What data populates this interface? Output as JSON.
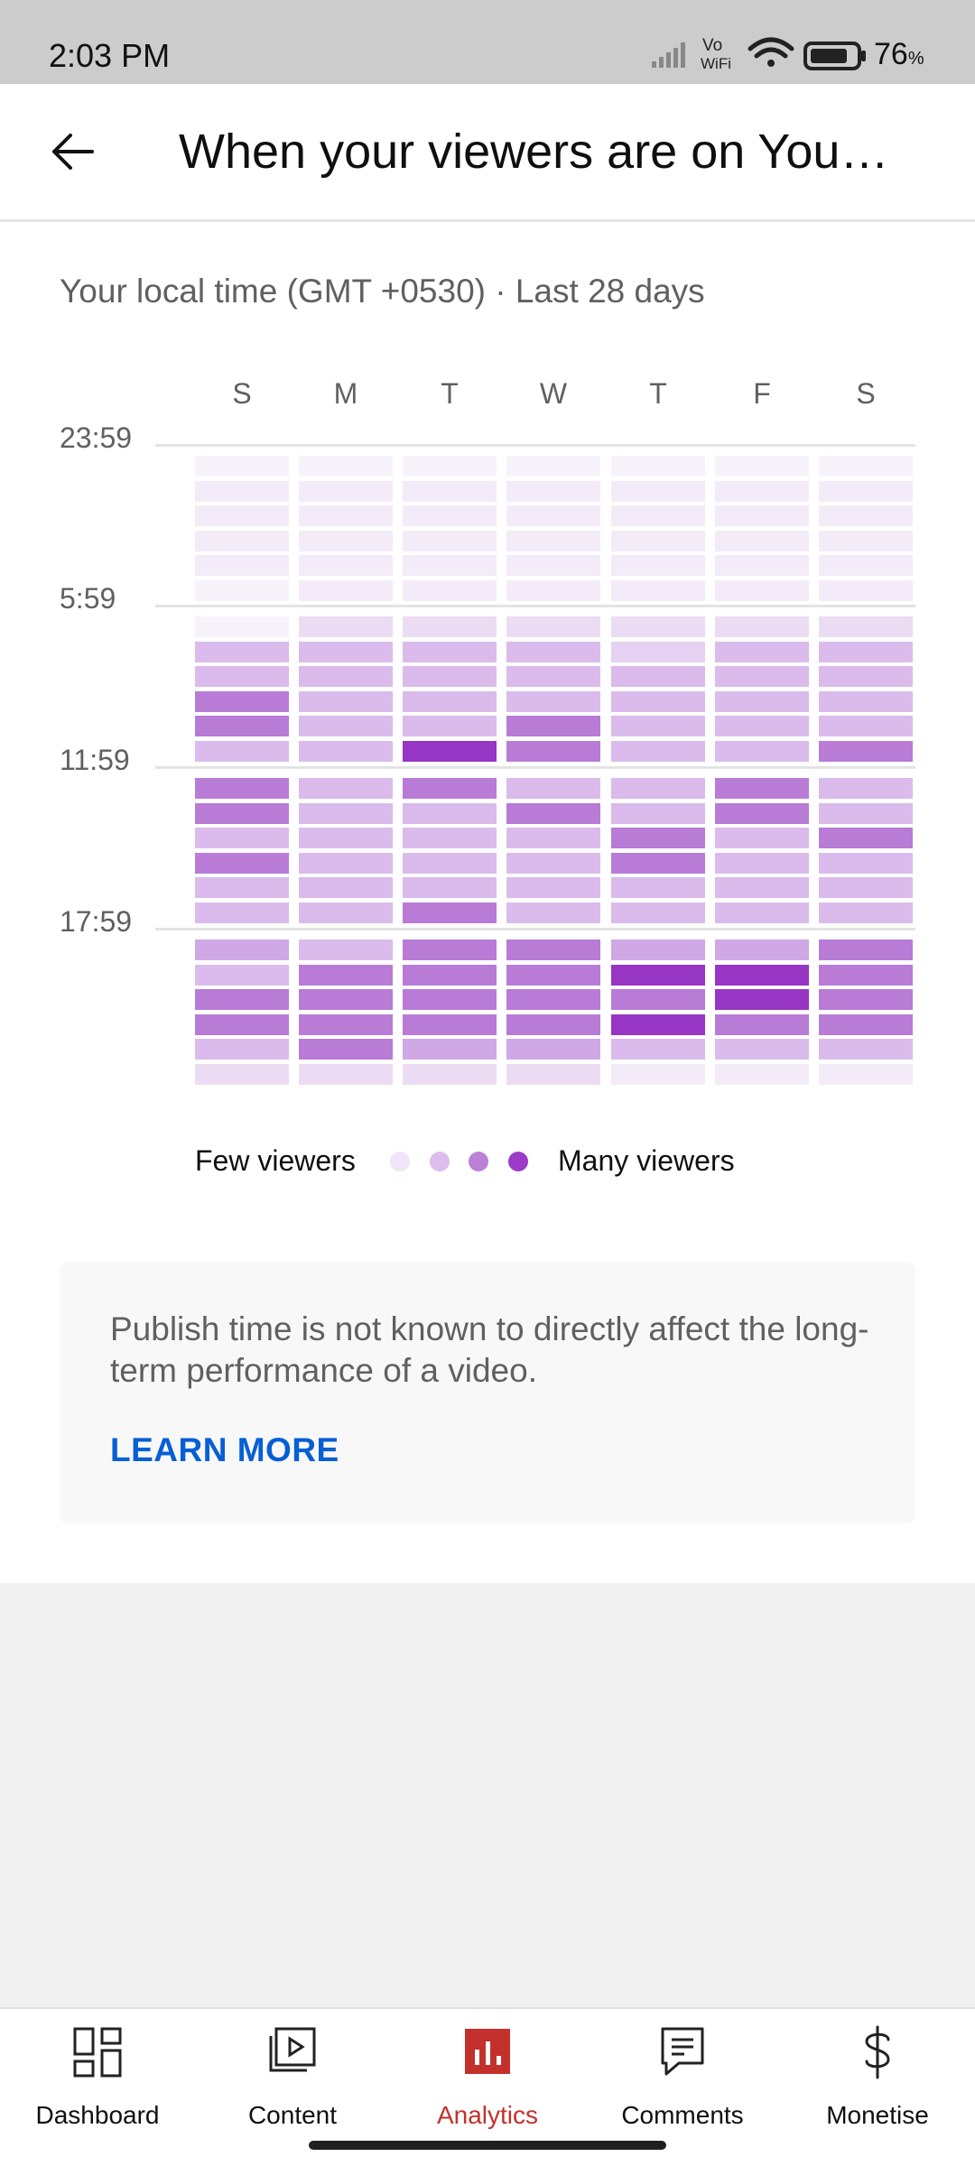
{
  "status_bar": {
    "time": "2:03 PM",
    "battery_percent": "76",
    "battery_unit": "%",
    "icons": [
      "signal-icon",
      "vowifi-icon",
      "wifi-icon",
      "battery-icon"
    ]
  },
  "header": {
    "back_icon": "arrow-left-icon",
    "title": "When your viewers are on YouTube"
  },
  "subtitle": "Your local time (GMT +0530) · Last 28 days",
  "chart_data": {
    "type": "heatmap",
    "title": "",
    "x_categories": [
      "S",
      "M",
      "T",
      "W",
      "T",
      "F",
      "S"
    ],
    "y_tick_labels": [
      "23:59",
      "5:59",
      "11:59",
      "17:59"
    ],
    "y_orientation": "top-to-bottom hours, first row at 23:59",
    "scale_colors": [
      "#f8f3fb",
      "#f4ebf8",
      "#ecdcf3",
      "#e5d1f1",
      "#dabbeb",
      "#cfa8e5",
      "#b87bd6",
      "#9735c4"
    ],
    "levels_by_row": [
      [
        0,
        0,
        0,
        0,
        0,
        0,
        0
      ],
      [
        1,
        1,
        1,
        1,
        1,
        1,
        1
      ],
      [
        1,
        1,
        1,
        1,
        1,
        1,
        1
      ],
      [
        1,
        1,
        1,
        1,
        1,
        1,
        1
      ],
      [
        1,
        1,
        1,
        1,
        1,
        1,
        1
      ],
      [
        0,
        1,
        1,
        1,
        1,
        1,
        1
      ],
      [
        0,
        2,
        2,
        2,
        2,
        2,
        2
      ],
      [
        4,
        4,
        4,
        4,
        3,
        4,
        4
      ],
      [
        4,
        4,
        4,
        4,
        4,
        4,
        4
      ],
      [
        6,
        4,
        4,
        4,
        4,
        4,
        4
      ],
      [
        6,
        4,
        4,
        6,
        4,
        4,
        4
      ],
      [
        4,
        4,
        7,
        6,
        4,
        4,
        6
      ],
      [
        6,
        4,
        6,
        4,
        4,
        6,
        4
      ],
      [
        6,
        4,
        4,
        6,
        4,
        6,
        4
      ],
      [
        4,
        4,
        4,
        4,
        6,
        4,
        6
      ],
      [
        6,
        4,
        4,
        4,
        6,
        4,
        4
      ],
      [
        4,
        4,
        4,
        4,
        4,
        4,
        4
      ],
      [
        4,
        4,
        6,
        4,
        4,
        4,
        4
      ],
      [
        5,
        4,
        6,
        6,
        5,
        5,
        6
      ],
      [
        4,
        6,
        6,
        6,
        7,
        7,
        6
      ],
      [
        6,
        6,
        6,
        6,
        6,
        7,
        6
      ],
      [
        6,
        6,
        6,
        6,
        7,
        6,
        6
      ],
      [
        4,
        6,
        5,
        5,
        4,
        4,
        4
      ],
      [
        2,
        2,
        2,
        2,
        1,
        1,
        1
      ]
    ]
  },
  "legend": {
    "few_label": "Few viewers",
    "many_label": "Many viewers",
    "dot_colors": [
      "#f1e4f8",
      "#dcbdec",
      "#bb80d8",
      "#9c3ac9"
    ]
  },
  "info_card": {
    "text": "Publish time is not known to directly affect the long-term performance of a video.",
    "link_label": "LEARN MORE",
    "link_color": "#065fd4"
  },
  "bottom_nav": {
    "active_color": "#c4302b",
    "items": [
      {
        "label": "Dashboard",
        "icon": "dashboard-icon",
        "active": false
      },
      {
        "label": "Content",
        "icon": "content-icon",
        "active": false
      },
      {
        "label": "Analytics",
        "icon": "analytics-icon",
        "active": true
      },
      {
        "label": "Comments",
        "icon": "comments-icon",
        "active": false
      },
      {
        "label": "Monetise",
        "icon": "monetise-icon",
        "active": false
      }
    ]
  }
}
